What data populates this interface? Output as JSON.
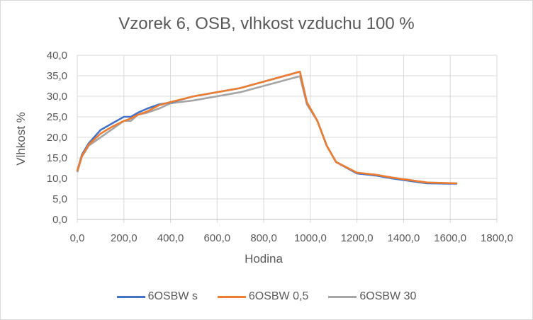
{
  "chart_data": {
    "type": "line",
    "title": "Vzorek 6, OSB, vlhkost vzduchu 100 %",
    "xlabel": "Hodina",
    "ylabel": "Vlhkost %",
    "xlim": [
      0,
      1800
    ],
    "ylim": [
      0,
      40
    ],
    "x_ticks": [
      "0,0",
      "200,0",
      "400,0",
      "600,0",
      "800,0",
      "1000,0",
      "1200,0",
      "1400,0",
      "1600,0",
      "1800,0"
    ],
    "y_ticks": [
      "0,0",
      "5,0",
      "10,0",
      "15,0",
      "20,0",
      "25,0",
      "30,0",
      "35,0",
      "40,0"
    ],
    "grid": true,
    "legend_position": "bottom",
    "series": [
      {
        "name": "6OSBW s",
        "color": "#4472c4",
        "x": [
          0,
          20,
          50,
          100,
          150,
          200,
          230,
          260,
          300,
          350,
          400,
          500,
          700,
          955,
          985,
          1030,
          1070,
          1110,
          1200,
          1280,
          1350,
          1500,
          1630
        ],
        "y": [
          11.8,
          15.8,
          18.6,
          21.8,
          23.4,
          25.0,
          25.0,
          26.0,
          27.0,
          28.0,
          28.5,
          30.0,
          32.0,
          36.0,
          28.5,
          24.0,
          18.0,
          14.0,
          11.2,
          10.7,
          10.0,
          8.8,
          8.7
        ]
      },
      {
        "name": "6OSBW 0,5",
        "color": "#ed7d31",
        "x": [
          0,
          20,
          50,
          100,
          150,
          200,
          230,
          260,
          300,
          350,
          400,
          500,
          700,
          955,
          985,
          1030,
          1070,
          1110,
          1200,
          1280,
          1350,
          1500,
          1630
        ],
        "y": [
          11.8,
          15.5,
          18.3,
          20.9,
          22.6,
          24.0,
          24.6,
          25.5,
          26.3,
          27.8,
          28.6,
          30.0,
          32.0,
          36.0,
          28.5,
          24.0,
          18.0,
          14.0,
          11.4,
          10.9,
          10.2,
          9.0,
          8.8
        ]
      },
      {
        "name": "6OSBW 30",
        "color": "#a5a5a5",
        "x": [
          0,
          20,
          50,
          100,
          150,
          200,
          230,
          260,
          300,
          350,
          400,
          500,
          700,
          955,
          985,
          1030,
          1070,
          1110,
          1200,
          1280,
          1350,
          1500,
          1630
        ],
        "y": [
          11.5,
          15.3,
          18.0,
          20.0,
          22.0,
          24.0,
          24.0,
          25.5,
          26.0,
          27.0,
          28.3,
          29.0,
          31.0,
          34.9,
          28.0,
          24.0,
          18.0,
          14.0,
          11.4,
          10.9,
          10.2,
          9.0,
          8.8
        ]
      }
    ]
  }
}
